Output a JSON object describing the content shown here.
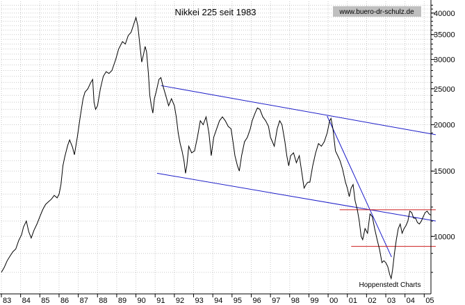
{
  "chart_data": {
    "type": "line",
    "title": "Nikkei 225 seit 1983",
    "source": "www.buero-dr-schulz.de",
    "credit": "Hoppenstedt Charts",
    "x_start_year": 1983,
    "x_end_year": 2005.35,
    "y_scale": "log",
    "ylim": [
      7000,
      43000
    ],
    "grid": true,
    "x_tick_labels": [
      "83",
      "84",
      "85",
      "86",
      "87",
      "88",
      "89",
      "90",
      "91",
      "92",
      "93",
      "94",
      "95",
      "96",
      "97",
      "98",
      "99",
      "00",
      "01",
      "02",
      "03",
      "04",
      "05"
    ],
    "y_ticks": [
      {
        "value": 10000,
        "label": "10000"
      },
      {
        "value": 15000,
        "label": "15000"
      },
      {
        "value": 20000,
        "label": "20000"
      },
      {
        "value": 25000,
        "label": "25000"
      },
      {
        "value": 30000,
        "label": "30000"
      },
      {
        "value": 35000,
        "label": "35000"
      },
      {
        "value": 40000,
        "label": "40000"
      }
    ],
    "series": [
      {
        "color": "#000000",
        "points": [
          [
            1983.0,
            8000
          ],
          [
            1983.15,
            8250
          ],
          [
            1983.3,
            8600
          ],
          [
            1983.45,
            8850
          ],
          [
            1983.6,
            9100
          ],
          [
            1983.75,
            9250
          ],
          [
            1983.9,
            9750
          ],
          [
            1984.05,
            10100
          ],
          [
            1984.15,
            10600
          ],
          [
            1984.3,
            11000
          ],
          [
            1984.42,
            10300
          ],
          [
            1984.55,
            9900
          ],
          [
            1984.7,
            10400
          ],
          [
            1984.85,
            10800
          ],
          [
            1985.0,
            11300
          ],
          [
            1985.15,
            11800
          ],
          [
            1985.3,
            12200
          ],
          [
            1985.45,
            12400
          ],
          [
            1985.6,
            12600
          ],
          [
            1985.75,
            12900
          ],
          [
            1985.9,
            12700
          ],
          [
            1986.0,
            13000
          ],
          [
            1986.1,
            13800
          ],
          [
            1986.2,
            15500
          ],
          [
            1986.3,
            16400
          ],
          [
            1986.45,
            17600
          ],
          [
            1986.55,
            18200
          ],
          [
            1986.7,
            17400
          ],
          [
            1986.8,
            16600
          ],
          [
            1986.95,
            18500
          ],
          [
            1987.1,
            21000
          ],
          [
            1987.25,
            23500
          ],
          [
            1987.35,
            24500
          ],
          [
            1987.5,
            25000
          ],
          [
            1987.65,
            26000
          ],
          [
            1987.75,
            26500
          ],
          [
            1987.82,
            23000
          ],
          [
            1987.9,
            22000
          ],
          [
            1988.0,
            22500
          ],
          [
            1988.15,
            25000
          ],
          [
            1988.3,
            27000
          ],
          [
            1988.45,
            27800
          ],
          [
            1988.6,
            27500
          ],
          [
            1988.75,
            28000
          ],
          [
            1988.95,
            30000
          ],
          [
            1989.1,
            32000
          ],
          [
            1989.3,
            33500
          ],
          [
            1989.45,
            33000
          ],
          [
            1989.6,
            34800
          ],
          [
            1989.75,
            35500
          ],
          [
            1989.9,
            37500
          ],
          [
            1990.0,
            38900
          ],
          [
            1990.1,
            37000
          ],
          [
            1990.2,
            33000
          ],
          [
            1990.3,
            29500
          ],
          [
            1990.4,
            31000
          ],
          [
            1990.48,
            32500
          ],
          [
            1990.55,
            31500
          ],
          [
            1990.65,
            27500
          ],
          [
            1990.72,
            24000
          ],
          [
            1990.8,
            22500
          ],
          [
            1990.88,
            21500
          ],
          [
            1990.96,
            23500
          ],
          [
            1991.05,
            24500
          ],
          [
            1991.2,
            26500
          ],
          [
            1991.3,
            26800
          ],
          [
            1991.4,
            25500
          ],
          [
            1991.55,
            24000
          ],
          [
            1991.7,
            22500
          ],
          [
            1991.85,
            23500
          ],
          [
            1992.0,
            22500
          ],
          [
            1992.1,
            21000
          ],
          [
            1992.2,
            19000
          ],
          [
            1992.3,
            17800
          ],
          [
            1992.4,
            17000
          ],
          [
            1992.5,
            16000
          ],
          [
            1992.58,
            14800
          ],
          [
            1992.65,
            15500
          ],
          [
            1992.75,
            17500
          ],
          [
            1992.9,
            16800
          ],
          [
            1993.05,
            17000
          ],
          [
            1993.2,
            18500
          ],
          [
            1993.35,
            20500
          ],
          [
            1993.5,
            20000
          ],
          [
            1993.65,
            21000
          ],
          [
            1993.8,
            19000
          ],
          [
            1993.92,
            16500
          ],
          [
            1994.05,
            18500
          ],
          [
            1994.2,
            19500
          ],
          [
            1994.35,
            20500
          ],
          [
            1994.5,
            21000
          ],
          [
            1994.65,
            20500
          ],
          [
            1994.8,
            19800
          ],
          [
            1994.95,
            19500
          ],
          [
            1995.05,
            18000
          ],
          [
            1995.15,
            16500
          ],
          [
            1995.28,
            15500
          ],
          [
            1995.38,
            15000
          ],
          [
            1995.5,
            16500
          ],
          [
            1995.65,
            18000
          ],
          [
            1995.8,
            18500
          ],
          [
            1995.95,
            19500
          ],
          [
            1996.05,
            20500
          ],
          [
            1996.2,
            21500
          ],
          [
            1996.32,
            22200
          ],
          [
            1996.45,
            22000
          ],
          [
            1996.6,
            21000
          ],
          [
            1996.75,
            20500
          ],
          [
            1996.9,
            19800
          ],
          [
            1997.0,
            18500
          ],
          [
            1997.1,
            18000
          ],
          [
            1997.2,
            17500
          ],
          [
            1997.35,
            19500
          ],
          [
            1997.48,
            20500
          ],
          [
            1997.6,
            20000
          ],
          [
            1997.75,
            18000
          ],
          [
            1997.85,
            16500
          ],
          [
            1997.95,
            15500
          ],
          [
            1998.05,
            16500
          ],
          [
            1998.2,
            16800
          ],
          [
            1998.35,
            15800
          ],
          [
            1998.5,
            16500
          ],
          [
            1998.62,
            15000
          ],
          [
            1998.75,
            13500
          ],
          [
            1998.85,
            13800
          ],
          [
            1998.95,
            14000
          ],
          [
            1999.05,
            14000
          ],
          [
            1999.2,
            15500
          ],
          [
            1999.35,
            16800
          ],
          [
            1999.5,
            17800
          ],
          [
            1999.65,
            17500
          ],
          [
            1999.8,
            18000
          ],
          [
            1999.95,
            19000
          ],
          [
            2000.08,
            20500
          ],
          [
            2000.15,
            20800
          ],
          [
            2000.25,
            19500
          ],
          [
            2000.38,
            17000
          ],
          [
            2000.5,
            16500
          ],
          [
            2000.62,
            16000
          ],
          [
            2000.75,
            15200
          ],
          [
            2000.9,
            14000
          ],
          [
            2001.0,
            13500
          ],
          [
            2001.1,
            12800
          ],
          [
            2001.2,
            13500
          ],
          [
            2001.3,
            13800
          ],
          [
            2001.4,
            12500
          ],
          [
            2001.52,
            11800
          ],
          [
            2001.62,
            11000
          ],
          [
            2001.72,
            10000
          ],
          [
            2001.8,
            9800
          ],
          [
            2001.92,
            10500
          ],
          [
            2002.05,
            10200
          ],
          [
            2002.18,
            11500
          ],
          [
            2002.3,
            11300
          ],
          [
            2002.42,
            10500
          ],
          [
            2002.55,
            9800
          ],
          [
            2002.68,
            9200
          ],
          [
            2002.8,
            8500
          ],
          [
            2002.9,
            8600
          ],
          [
            2003.0,
            8500
          ],
          [
            2003.1,
            8300
          ],
          [
            2003.2,
            7900
          ],
          [
            2003.28,
            7700
          ],
          [
            2003.35,
            8100
          ],
          [
            2003.45,
            9000
          ],
          [
            2003.55,
            9800
          ],
          [
            2003.65,
            10500
          ],
          [
            2003.75,
            10800
          ],
          [
            2003.85,
            10200
          ],
          [
            2003.95,
            10500
          ],
          [
            2004.05,
            10700
          ],
          [
            2004.15,
            11000
          ],
          [
            2004.25,
            11700
          ],
          [
            2004.35,
            11600
          ],
          [
            2004.45,
            11200
          ],
          [
            2004.55,
            11200
          ],
          [
            2004.65,
            10900
          ],
          [
            2004.75,
            10800
          ],
          [
            2004.85,
            11000
          ],
          [
            2004.95,
            11300
          ],
          [
            2005.05,
            11600
          ],
          [
            2005.15,
            11700
          ],
          [
            2005.25,
            11500
          ],
          [
            2005.35,
            11400
          ]
        ]
      }
    ],
    "trendlines": [
      {
        "color": "#1c1cc8",
        "from": [
          1991.3,
          25500
        ],
        "to": [
          2005.6,
          18800
        ]
      },
      {
        "color": "#1c1cc8",
        "from": [
          1991.1,
          14800
        ],
        "to": [
          2005.6,
          11000
        ]
      },
      {
        "color": "#1c1cc8",
        "from": [
          1999.95,
          21100
        ],
        "to": [
          2003.3,
          8800
        ]
      },
      {
        "color": "#cc1c1c",
        "from": [
          2000.6,
          11800
        ],
        "to": [
          2005.6,
          11800
        ]
      },
      {
        "color": "#cc1c1c",
        "from": [
          2001.2,
          9400
        ],
        "to": [
          2005.6,
          9400
        ]
      }
    ]
  }
}
